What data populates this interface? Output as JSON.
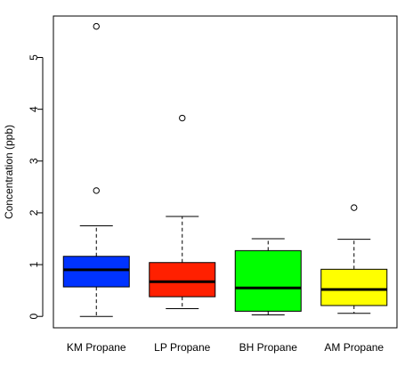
{
  "chart_data": {
    "type": "box",
    "title": "",
    "xlabel": "",
    "ylabel": "Concentration (ppb)",
    "ylim": [
      -0.22,
      5.8
    ],
    "y_ticks": [
      0,
      1,
      2,
      3,
      4,
      5
    ],
    "categories": [
      "KM Propane",
      "LP Propane",
      "BH Propane",
      "AM Propane"
    ],
    "boxes": [
      {
        "name": "KM Propane",
        "color": "#0033ff",
        "min": 0.0,
        "q1": 0.57,
        "median": 0.9,
        "q3": 1.16,
        "max": 1.75,
        "outliers": [
          2.43,
          5.6
        ]
      },
      {
        "name": "LP Propane",
        "color": "#ff2000",
        "min": 0.15,
        "q1": 0.38,
        "median": 0.67,
        "q3": 1.04,
        "max": 1.93,
        "outliers": [
          3.83
        ]
      },
      {
        "name": "BH Propane",
        "color": "#00ff00",
        "min": 0.03,
        "q1": 0.1,
        "median": 0.55,
        "q3": 1.27,
        "max": 1.5,
        "outliers": []
      },
      {
        "name": "AM Propane",
        "color": "#ffff00",
        "min": 0.06,
        "q1": 0.21,
        "median": 0.52,
        "q3": 0.91,
        "max": 1.49,
        "outliers": [
          2.1
        ]
      }
    ],
    "grid": false,
    "legend": "none"
  }
}
